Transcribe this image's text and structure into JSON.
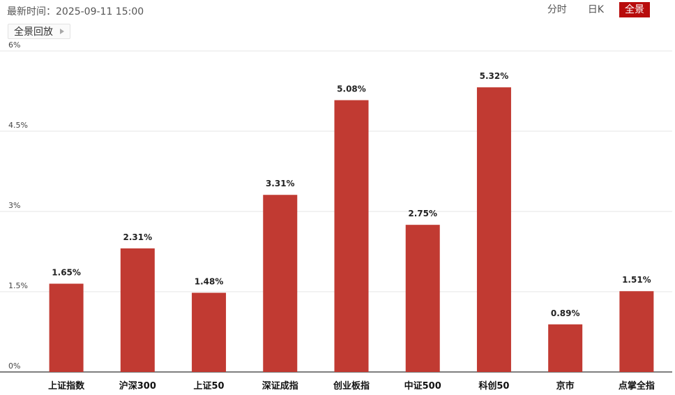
{
  "header": {
    "update_time": "最新时间：2025-09-11 15:00",
    "tabs": [
      {
        "label": "分时",
        "active": false
      },
      {
        "label": "日K",
        "active": false
      },
      {
        "label": "全景",
        "active": true
      }
    ],
    "replay_label": "全景回放"
  },
  "chart_data": {
    "type": "bar",
    "title": "",
    "xlabel": "",
    "ylabel": "",
    "categories": [
      "上证指数",
      "沪深300",
      "上证50",
      "深证成指",
      "创业板指",
      "中证500",
      "科创50",
      "京市",
      "点掌全指"
    ],
    "values": [
      1.65,
      2.31,
      1.48,
      3.31,
      5.08,
      2.75,
      5.32,
      0.89,
      1.51
    ],
    "value_labels": [
      "1.65%",
      "2.31%",
      "1.48%",
      "3.31%",
      "5.08%",
      "2.75%",
      "5.32%",
      "0.89%",
      "1.51%"
    ],
    "ylim": [
      0,
      6
    ],
    "yticks": [
      0,
      1.5,
      3,
      4.5,
      6
    ],
    "ytick_labels": [
      "0%",
      "1.5%",
      "3%",
      "4.5%",
      "6%"
    ],
    "grid": true,
    "bar_color": "#c13a32"
  }
}
